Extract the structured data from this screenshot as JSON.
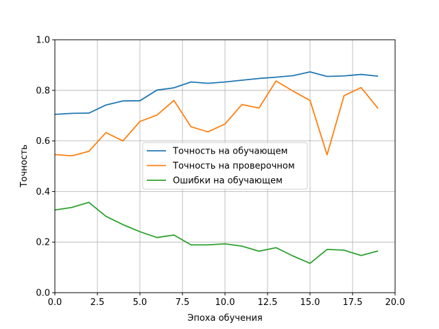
{
  "chart_data": {
    "type": "line",
    "title": "",
    "xlabel": "Эпоха обучения",
    "ylabel": "Точность",
    "xlim": [
      0,
      20
    ],
    "ylim": [
      0,
      1
    ],
    "xticks": [
      "0.0",
      "2.5",
      "5.0",
      "7.5",
      "10.0",
      "12.5",
      "15.0",
      "17.5",
      "20.0"
    ],
    "xtick_values": [
      0,
      2.5,
      5,
      7.5,
      10,
      12.5,
      15,
      17.5,
      20
    ],
    "yticks": [
      "0.0",
      "0.2",
      "0.4",
      "0.6",
      "0.8",
      "1.0"
    ],
    "ytick_values": [
      0,
      0.2,
      0.4,
      0.6,
      0.8,
      1.0
    ],
    "grid": true,
    "legend_position": "center",
    "x": [
      0,
      1,
      2,
      3,
      4,
      5,
      6,
      7,
      8,
      9,
      10,
      11,
      12,
      13,
      14,
      15,
      16,
      17,
      18,
      19
    ],
    "series": [
      {
        "name": "Точность на обучающем",
        "color": "#1f77b4",
        "values": [
          0.705,
          0.709,
          0.71,
          0.742,
          0.758,
          0.759,
          0.801,
          0.81,
          0.833,
          0.828,
          0.833,
          0.84,
          0.847,
          0.852,
          0.858,
          0.873,
          0.855,
          0.857,
          0.863,
          0.856
        ]
      },
      {
        "name": "Точность на проверочном",
        "color": "#ff7f0e",
        "values": [
          0.546,
          0.541,
          0.559,
          0.633,
          0.6,
          0.677,
          0.702,
          0.76,
          0.656,
          0.636,
          0.667,
          0.744,
          0.73,
          0.837,
          0.797,
          0.76,
          0.545,
          0.779,
          0.811,
          0.728
        ]
      },
      {
        "name": "Ошибки на обучающем",
        "color": "#2ca02c",
        "values": [
          0.327,
          0.337,
          0.357,
          0.302,
          0.269,
          0.241,
          0.218,
          0.228,
          0.189,
          0.189,
          0.193,
          0.184,
          0.164,
          0.178,
          0.145,
          0.116,
          0.171,
          0.168,
          0.147,
          0.165
        ]
      }
    ]
  }
}
